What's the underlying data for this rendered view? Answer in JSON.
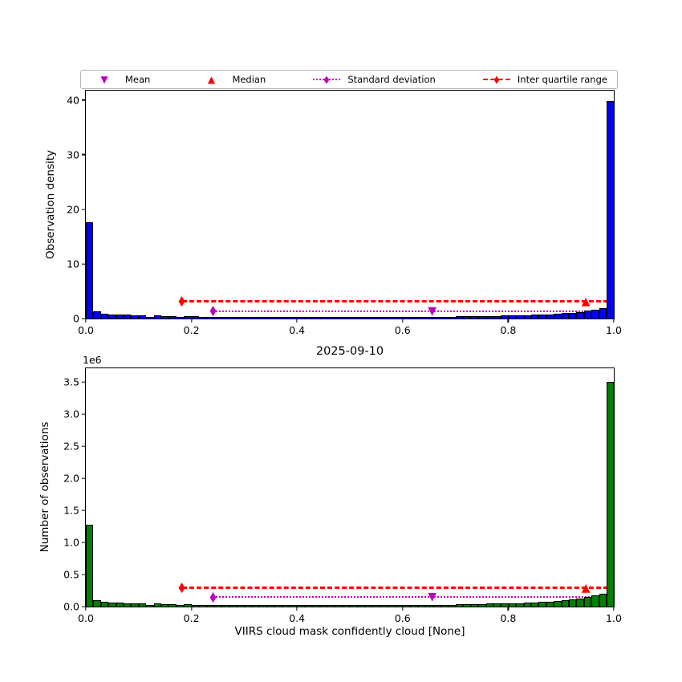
{
  "figure": {
    "title": "2025-09-10",
    "xlabel": "VIIRS cloud mask confidently cloud [None]",
    "offset_label": "1e6",
    "background": "#ffffff"
  },
  "legend": {
    "items": [
      {
        "label": "Mean",
        "marker": "triangle-down",
        "color": "#bf00bf",
        "line": "none"
      },
      {
        "label": "Median",
        "marker": "triangle-up",
        "color": "#ff0000",
        "line": "none"
      },
      {
        "label": "Standard deviation",
        "marker": "diamond",
        "color": "#bf00bf",
        "line": "dotted"
      },
      {
        "label": "Inter quartile range",
        "marker": "diamond",
        "color": "#ff0000",
        "line": "dashed"
      }
    ]
  },
  "chart_data": [
    {
      "type": "bar",
      "name": "observation-density-histogram",
      "ylabel": "Observation density",
      "bar_color": "#0000ff",
      "edge_color": "#000000",
      "xlim": [
        0.0,
        1.0
      ],
      "ylim": [
        0,
        41.7
      ],
      "n_bins": 70,
      "bin_width": 0.0143,
      "values": [
        17.6,
        1.35,
        0.95,
        0.8,
        0.75,
        0.7,
        0.65,
        0.6,
        0.35,
        0.6,
        0.5,
        0.45,
        0.3,
        0.45,
        0.4,
        0.35,
        0.3,
        0.35,
        0.3,
        0.3,
        0.3,
        0.25,
        0.3,
        0.25,
        0.3,
        0.25,
        0.25,
        0.3,
        0.25,
        0.25,
        0.3,
        0.25,
        0.25,
        0.25,
        0.3,
        0.25,
        0.25,
        0.3,
        0.25,
        0.3,
        0.3,
        0.25,
        0.3,
        0.3,
        0.3,
        0.35,
        0.3,
        0.35,
        0.35,
        0.4,
        0.4,
        0.45,
        0.45,
        0.5,
        0.5,
        0.55,
        0.6,
        0.6,
        0.65,
        0.7,
        0.75,
        0.8,
        0.9,
        1.0,
        1.1,
        1.2,
        1.4,
        1.6,
        1.9,
        39.8
      ],
      "xtick_values": [
        0.0,
        0.2,
        0.4,
        0.6,
        0.8,
        1.0
      ],
      "xtick_labels": [
        "0.0",
        "0.2",
        "0.4",
        "0.6",
        "0.8",
        "1.0"
      ],
      "ytick_values": [
        0,
        10,
        20,
        30,
        40
      ],
      "ytick_labels": [
        "0",
        "10",
        "20",
        "30",
        "40"
      ],
      "stats": {
        "mean_x": 0.656,
        "median_x": 0.947,
        "q1_x": 0.182,
        "q3_x": 0.99,
        "std_lo_x": 0.241,
        "std_hi_x": 0.995,
        "iqr_line_y": 3.1,
        "std_line_y": 1.35
      },
      "colors": {
        "iqr": "#ff0000",
        "std": "#bf00bf"
      }
    },
    {
      "type": "bar",
      "name": "observation-count-histogram",
      "ylabel": "Number of observations",
      "bar_color": "#008000",
      "edge_color": "#000000",
      "xlim": [
        0.0,
        1.0
      ],
      "ylim": [
        0,
        3710000
      ],
      "n_bins": 70,
      "bin_width": 0.0143,
      "values": [
        1270000,
        95000,
        70000,
        60000,
        60000,
        55000,
        50000,
        45000,
        30000,
        45000,
        40000,
        35000,
        25000,
        35000,
        30000,
        30000,
        25000,
        30000,
        25000,
        25000,
        25000,
        20000,
        25000,
        20000,
        25000,
        20000,
        20000,
        25000,
        20000,
        20000,
        25000,
        20000,
        20000,
        20000,
        25000,
        20000,
        20000,
        25000,
        20000,
        25000,
        25000,
        20000,
        25000,
        25000,
        25000,
        30000,
        25000,
        30000,
        30000,
        35000,
        35000,
        40000,
        40000,
        45000,
        45000,
        50000,
        50000,
        55000,
        60000,
        65000,
        70000,
        80000,
        90000,
        100000,
        110000,
        130000,
        150000,
        170000,
        200000,
        3500000
      ],
      "xtick_values": [
        0.0,
        0.2,
        0.4,
        0.6,
        0.8,
        1.0
      ],
      "xtick_labels": [
        "0.0",
        "0.2",
        "0.4",
        "0.6",
        "0.8",
        "1.0"
      ],
      "ytick_values": [
        0,
        500000,
        1000000,
        1500000,
        2000000,
        2500000,
        3000000,
        3500000
      ],
      "ytick_labels": [
        "0.0",
        "0.5",
        "1.0",
        "1.5",
        "2.0",
        "2.5",
        "3.0",
        "3.5"
      ],
      "stats": {
        "mean_x": 0.656,
        "median_x": 0.947,
        "q1_x": 0.182,
        "q3_x": 0.99,
        "std_lo_x": 0.241,
        "std_hi_x": 0.995,
        "iqr_line_y": 290000,
        "std_line_y": 145000
      },
      "colors": {
        "iqr": "#ff0000",
        "std": "#bf00bf"
      }
    }
  ]
}
